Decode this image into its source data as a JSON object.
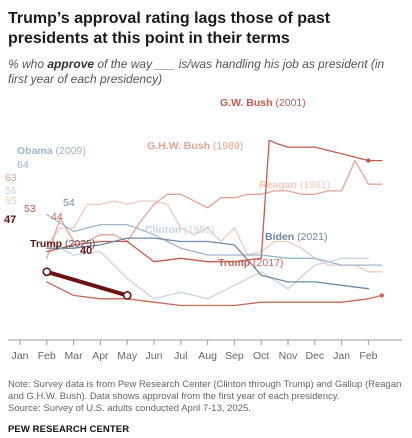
{
  "title": "Trump’s approval rating lags those of past presidents at this point in their terms",
  "subtitle": {
    "pre": "% who ",
    "bold": "approve",
    "post": " of the way ___ is/was handling his job as president (in first year of each presidency)"
  },
  "note": "Note: Survey data is from Pew Research Center (Clinton through Trump) and Gallup (Reagan and G.H.W. Bush). Data shows approval from the first year of each presidency.",
  "source": "Source: Survey of U.S. adults conducted April 7-13, 2025.",
  "footer": "PEW RESEARCH CENTER",
  "colors": {
    "trump2025": "#6b1212",
    "gwbush": "#c55a4e",
    "ghwbush": "#e6a396",
    "reagan": "#f0cabd",
    "obama": "#9fb5cc",
    "clinton": "#c9d4de",
    "biden": "#6f89a6",
    "trump2017": "#c9685b",
    "axis": "#999999"
  },
  "chart_data": {
    "type": "line",
    "x_labels": [
      "Jan",
      "Feb",
      "Mar",
      "Apr",
      "May",
      "Jun",
      "Jul",
      "Aug",
      "Sep",
      "Oct",
      "Nov",
      "Dec",
      "Jan",
      "Feb"
    ],
    "ylim": [
      25,
      95
    ],
    "series": [
      {
        "name": "Reagan",
        "year": "(1981)",
        "color_key": "reagan",
        "x": [
          1,
          1.5,
          2,
          2.5,
          3,
          3.5,
          4,
          4.5,
          5,
          5.5,
          6,
          6.5,
          7,
          7.5,
          8,
          8.5,
          9,
          9.5,
          10,
          10.5,
          11,
          11.5,
          12,
          12.5,
          13,
          13.5
        ],
        "y": [
          55,
          60,
          60,
          67,
          67,
          68,
          67,
          68,
          68,
          67,
          60,
          58,
          60,
          56,
          60,
          52,
          53,
          56,
          56,
          54,
          51,
          49,
          49,
          49,
          47,
          47
        ]
      },
      {
        "name": "G.H.W. Bush",
        "year": "(1989)",
        "color_key": "ghwbush",
        "x": [
          1,
          1.5,
          2,
          2.5,
          3,
          3.5,
          4,
          4.5,
          5,
          5.5,
          6,
          6.5,
          7,
          7.5,
          8,
          8.5,
          9,
          9.5,
          10,
          10.5,
          11,
          11.5,
          12,
          12.5,
          13,
          13.5
        ],
        "y": [
          51,
          63,
          56,
          56,
          58,
          58,
          56,
          62,
          67,
          70,
          70,
          68,
          66,
          69,
          69,
          70,
          70,
          71,
          71,
          70,
          70,
          71,
          71,
          80,
          73,
          73
        ]
      },
      {
        "name": "G.W. Bush",
        "year": "(2001)",
        "color_key": "gwbush",
        "x": [
          1,
          2,
          3,
          4,
          5,
          6,
          7,
          8,
          9,
          9.3,
          9.6,
          10,
          11,
          12,
          13,
          13.5
        ],
        "y": [
          53,
          55,
          56,
          56,
          50,
          51,
          50,
          50,
          51,
          86,
          85,
          84,
          84,
          82,
          80,
          80
        ]
      },
      {
        "name": "Obama",
        "year": "(2009)",
        "color_key": "obama",
        "x": [
          1,
          2,
          3,
          4,
          5,
          6,
          7,
          8,
          9,
          10,
          11,
          12,
          13,
          13.5
        ],
        "y": [
          64,
          59,
          61,
          61,
          58,
          54,
          52,
          52,
          52,
          51,
          51,
          49,
          49,
          49
        ]
      },
      {
        "name": "Clinton",
        "year": "(1993)",
        "color_key": "clinton",
        "x": [
          1,
          2,
          3,
          4,
          5,
          6,
          7,
          8,
          9,
          10,
          11,
          12,
          13
        ],
        "y": [
          56,
          52,
          53,
          45,
          39,
          41,
          39,
          43,
          47,
          42,
          49,
          51,
          51
        ]
      },
      {
        "name": "Biden",
        "year": "(2021)",
        "color_key": "biden",
        "x": [
          1,
          2,
          3,
          4,
          5,
          6,
          7,
          8,
          9,
          10,
          11,
          12,
          13
        ],
        "y": [
          54,
          54,
          55,
          57,
          57,
          56,
          56,
          55,
          46,
          44,
          44,
          43,
          42
        ]
      },
      {
        "name": "Trump",
        "year": "(2017)",
        "color_key": "trump2017",
        "x": [
          1,
          2,
          3,
          4,
          5,
          6,
          7,
          8,
          9,
          10,
          11,
          12,
          13,
          13.5
        ],
        "y": [
          44,
          40,
          39,
          39,
          38,
          37,
          37,
          37,
          38,
          38,
          38,
          38,
          39,
          40
        ]
      },
      {
        "name": "Trump",
        "year": "(2025)",
        "color_key": "trump2025",
        "x": [
          1,
          4
        ],
        "y": [
          47,
          40
        ]
      }
    ],
    "value_labels": [
      {
        "text": "64",
        "color_key": "obama",
        "x": 1,
        "y": 64
      },
      {
        "text": "63",
        "color_key": "ghwbush",
        "x": 1,
        "y": 63
      },
      {
        "text": "56",
        "color_key": "clinton",
        "x": 1,
        "y": 56
      },
      {
        "text": "55",
        "color_key": "reagan",
        "x": 1,
        "y": 55
      },
      {
        "text": "54",
        "color_key": "biden",
        "x": 2,
        "y": 54
      },
      {
        "text": "53",
        "color_key": "gwbush",
        "x": 1,
        "y": 53
      },
      {
        "text": "44",
        "color_key": "trump2017",
        "x": 2,
        "y": 44
      },
      {
        "text": "47",
        "color_key": "trump2025",
        "x": 1,
        "y": 47
      },
      {
        "text": "40",
        "color_key": "trump2025",
        "x": 4,
        "y": 40
      }
    ]
  }
}
